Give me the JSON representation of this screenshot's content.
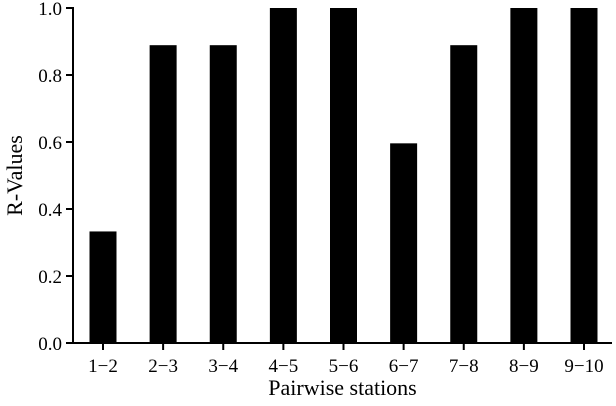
{
  "chart_data": {
    "type": "bar",
    "title": "",
    "xlabel": "Pairwise stations",
    "ylabel": "R-Values",
    "categories": [
      "1−2",
      "2−3",
      "3−4",
      "4−5",
      "5−6",
      "6−7",
      "7−8",
      "8−9",
      "9−10"
    ],
    "values": [
      0.333,
      0.889,
      0.889,
      1.0,
      1.0,
      0.596,
      0.889,
      1.0,
      1.0
    ],
    "ylim": [
      0,
      1.0
    ],
    "yticks": [
      "0.0",
      "0.2",
      "0.4",
      "0.6",
      "0.8",
      "1.0"
    ],
    "grid": false,
    "bar_color": "#000000",
    "axis_color": "#000000"
  }
}
